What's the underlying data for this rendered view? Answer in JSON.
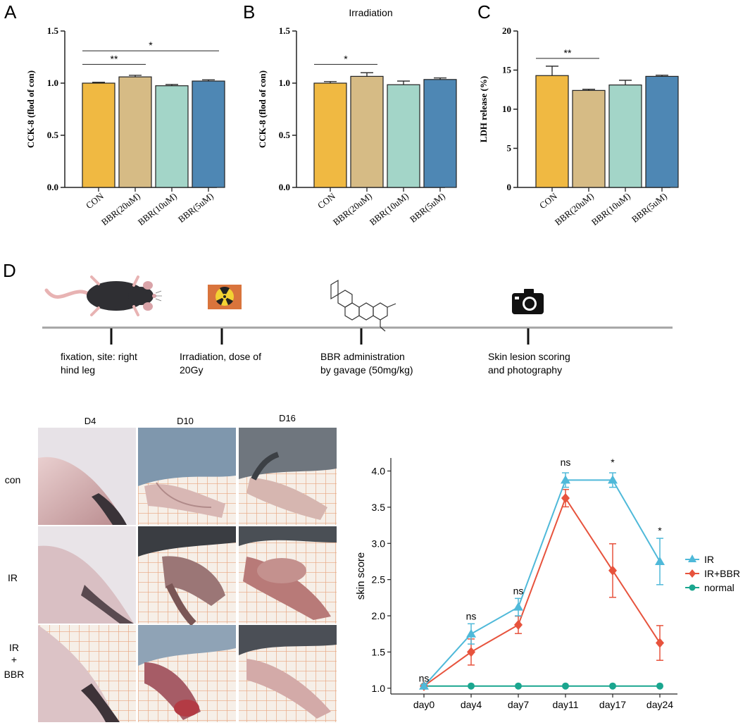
{
  "colors": {
    "con": "#f0b942",
    "bbr20": "#d6bb85",
    "bbr10": "#a3d5c8",
    "bbr5": "#4e87b4",
    "ir": "#4fb9d9",
    "ir_bbr": "#e7533d",
    "normal": "#1aa68f",
    "axis": "#222222"
  },
  "panels": {
    "a": {
      "letter": "A"
    },
    "b": {
      "letter": "B"
    },
    "c": {
      "letter": "C"
    },
    "d": {
      "letter": "D"
    }
  },
  "chart_data": [
    {
      "type": "bar",
      "id": "A",
      "title": "",
      "ylabel": "CCK-8 (flod of con)",
      "categories": [
        "CON",
        "BBR(20uM)",
        "BBR(10uM)",
        "BBR(5uM)"
      ],
      "values": [
        1.0,
        1.06,
        0.975,
        1.02
      ],
      "errors": [
        0.008,
        0.015,
        0.012,
        0.012
      ],
      "ylim": [
        0,
        1.5
      ],
      "yticks": [
        "0.0",
        "0.5",
        "1.0",
        "1.5"
      ],
      "ytick_values": [
        0,
        0.5,
        1.0,
        1.5
      ],
      "significance": [
        {
          "from": 0,
          "to": 1,
          "label": "**",
          "level": 1.18
        },
        {
          "from": 0,
          "to": 3,
          "label": "*",
          "level": 1.31
        }
      ]
    },
    {
      "type": "bar",
      "id": "B",
      "title": "Irradiation",
      "ylabel": "CCK-8 (flod of con)",
      "categories": [
        "CON",
        "BBR(20uM)",
        "BBR(10uM)",
        "BBR(5uM)"
      ],
      "values": [
        1.0,
        1.065,
        0.985,
        1.035
      ],
      "errors": [
        0.015,
        0.035,
        0.035,
        0.015
      ],
      "ylim": [
        0,
        1.5
      ],
      "yticks": [
        "0.0",
        "0.5",
        "1.0",
        "1.5"
      ],
      "ytick_values": [
        0,
        0.5,
        1.0,
        1.5
      ],
      "significance": [
        {
          "from": 0,
          "to": 1,
          "label": "*",
          "level": 1.18
        }
      ]
    },
    {
      "type": "bar",
      "id": "C",
      "title": "",
      "ylabel": "LDH release (%)",
      "categories": [
        "CON",
        "BBR(20uM)",
        "BBR(10uM)",
        "BBR(5uM)"
      ],
      "values": [
        14.3,
        12.4,
        13.1,
        14.2
      ],
      "errors": [
        1.2,
        0.15,
        0.6,
        0.15
      ],
      "ylim": [
        0,
        20
      ],
      "yticks": [
        "0",
        "5",
        "10",
        "15",
        "20"
      ],
      "ytick_values": [
        0,
        5,
        10,
        15,
        20
      ],
      "significance": [
        {
          "from": 0,
          "to": 1,
          "label": "**",
          "level": 16.5
        }
      ]
    },
    {
      "type": "line",
      "id": "skin-score",
      "title": "",
      "xlabel": "",
      "ylabel": "skin score",
      "categories": [
        "day0",
        "day4",
        "day7",
        "day11",
        "day17",
        "day24"
      ],
      "ylim": [
        0.92,
        4.18
      ],
      "yticks": [
        "1.0",
        "1.5",
        "2.0",
        "2.5",
        "3.0",
        "3.5",
        "4.0"
      ],
      "ytick_values": [
        1.0,
        1.5,
        2.0,
        2.5,
        3.0,
        3.5,
        4.0
      ],
      "series": [
        {
          "name": "IR",
          "marker": "triangle",
          "values": [
            1.03,
            1.75,
            2.12,
            3.875,
            3.875,
            2.75
          ],
          "errors": [
            0.02,
            0.14,
            0.12,
            0.1,
            0.1,
            0.32
          ]
        },
        {
          "name": "IR+BBR",
          "marker": "diamond",
          "values": [
            1.03,
            1.5,
            1.875,
            3.625,
            2.625,
            1.625
          ],
          "errors": [
            0.02,
            0.18,
            0.12,
            0.12,
            0.37,
            0.24
          ]
        },
        {
          "name": "normal",
          "marker": "circle",
          "values": [
            1.03,
            1.03,
            1.03,
            1.03,
            1.03,
            1.03
          ],
          "errors": [
            0,
            0,
            0,
            0,
            0,
            0
          ]
        }
      ],
      "annotations": [
        "ns",
        "ns",
        "ns",
        "ns",
        "*",
        "*"
      ],
      "legend_position": "right"
    }
  ],
  "timeline": {
    "steps": [
      {
        "icon": "mouse-icon",
        "line1": "fixation, site: right",
        "line2": "hind leg"
      },
      {
        "icon": "radiation-icon",
        "line1": "Irradiation, dose of",
        "line2": "20Gy"
      },
      {
        "icon": "molecule-icon",
        "line1": "BBR administration",
        "line2": "by gavage (50mg/kg)"
      },
      {
        "icon": "camera-icon",
        "line1": "Skin lesion scoring",
        "line2": "and photography"
      }
    ]
  },
  "photo_grid": {
    "columns": [
      "D4",
      "D10",
      "D16"
    ],
    "rows": [
      {
        "label": "con"
      },
      {
        "label": "IR"
      },
      {
        "label_lines": [
          "IR",
          "+",
          "BBR"
        ]
      }
    ]
  }
}
